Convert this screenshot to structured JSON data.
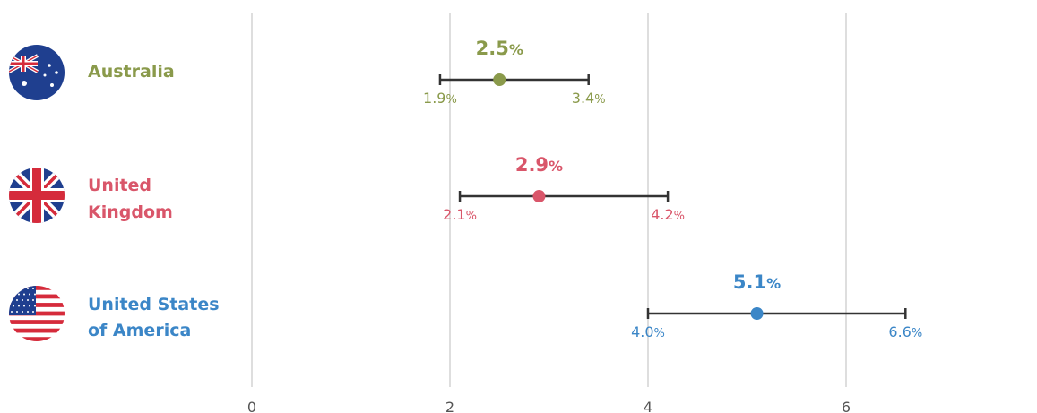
{
  "chart_data": {
    "type": "scatter",
    "x_ticks": [
      0,
      2,
      4,
      6
    ],
    "xlim": [
      0,
      7.5
    ],
    "grid": true,
    "series": [
      {
        "name": "Australia",
        "label_lines": [
          "Australia"
        ],
        "flag": "australia-flag-icon",
        "color": "#8a9a4b",
        "value": 2.5,
        "low": 1.9,
        "high": 3.4
      },
      {
        "name": "United Kingdom",
        "label_lines": [
          "United",
          "Kingdom"
        ],
        "flag": "united-kingdom-flag-icon",
        "color": "#d9566a",
        "value": 2.9,
        "low": 2.1,
        "high": 4.2
      },
      {
        "name": "United States of America",
        "label_lines": [
          "United States",
          "of America"
        ],
        "flag": "usa-flag-icon",
        "color": "#3b86c7",
        "value": 5.1,
        "low": 4.0,
        "high": 6.6
      }
    ],
    "unit": "%"
  }
}
